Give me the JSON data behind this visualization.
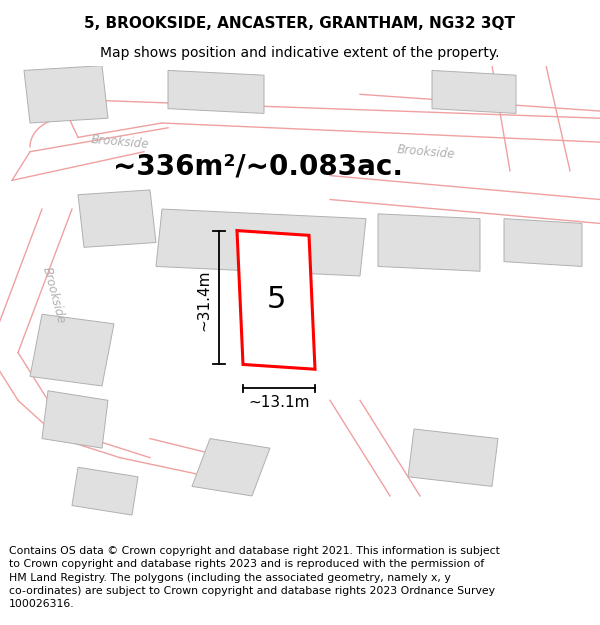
{
  "title": "5, BROOKSIDE, ANCASTER, GRANTHAM, NG32 3QT",
  "subtitle": "Map shows position and indicative extent of the property.",
  "area_text": "~336m²/~0.083ac.",
  "label_5": "5",
  "dim_height": "~31.4m",
  "dim_width": "~13.1m",
  "footer": "Contains OS data © Crown copyright and database right 2021. This information is subject to Crown copyright and database rights 2023 and is reproduced with the permission of HM Land Registry. The polygons (including the associated geometry, namely x, y co-ordinates) are subject to Crown copyright and database rights 2023 Ordnance Survey 100026316.",
  "bg_color": "#ffffff",
  "map_bg": "#ffffff",
  "road_color": "#f0a0a0",
  "building_fill": "#e0e0e0",
  "building_edge": "#b0b0b0",
  "highlight_fill": "#ffffff",
  "highlight_edge": "#ff0000",
  "road_label_color": "#b0b0b0",
  "title_fontsize": 11,
  "subtitle_fontsize": 10,
  "area_fontsize": 20,
  "label_fontsize": 22,
  "dim_fontsize": 11,
  "footer_fontsize": 7.8
}
